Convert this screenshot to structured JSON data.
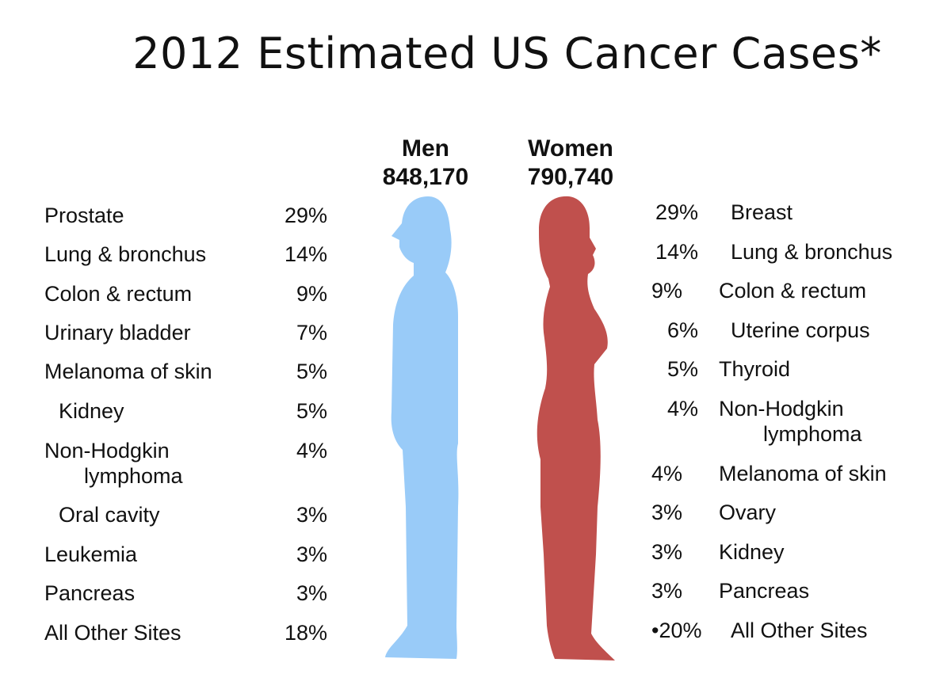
{
  "title": "2012 Estimated US Cancer Cases*",
  "colors": {
    "men": "#99cbf8",
    "women": "#c0504d"
  },
  "chart_data": {
    "type": "table",
    "title": "2012 Estimated US Cancer Cases*",
    "groups": [
      {
        "name": "Men",
        "total": "848,170",
        "total_value": 848170,
        "categories": [
          "Prostate",
          "Lung & bronchus",
          "Colon & rectum",
          "Urinary bladder",
          "Melanoma of skin",
          "Kidney",
          "Non-Hodgkin lymphoma",
          "Oral cavity",
          "Leukemia",
          "Pancreas",
          "All Other Sites"
        ],
        "values": [
          29,
          14,
          9,
          7,
          5,
          5,
          4,
          3,
          3,
          3,
          18
        ],
        "unit": "%"
      },
      {
        "name": "Women",
        "total": "790,740",
        "total_value": 790740,
        "categories": [
          "Breast",
          "Lung & bronchus",
          "Colon & rectum",
          "Uterine corpus",
          "Thyroid",
          "Non-Hodgkin lymphoma",
          "Melanoma of skin",
          "Ovary",
          "Kidney",
          "Pancreas",
          "All Other Sites"
        ],
        "values": [
          29,
          14,
          9,
          6,
          5,
          4,
          4,
          3,
          3,
          3,
          20
        ],
        "unit": "%"
      }
    ]
  },
  "men": {
    "header": "Men",
    "total": "848,170",
    "rows": [
      {
        "label": "Prostate",
        "pct": "29%"
      },
      {
        "label": "Lung & bronchus",
        "pct": "14%"
      },
      {
        "label": "Colon & rectum",
        "pct": "9%"
      },
      {
        "label": "Urinary bladder",
        "pct": "7%"
      },
      {
        "label": "Melanoma of skin",
        "pct": "5%"
      },
      {
        "label": "Kidney",
        "pct": "5%"
      },
      {
        "label": "Non-Hodgkin",
        "label2": "lymphoma",
        "pct": "4%"
      },
      {
        "label": "Oral cavity",
        "pct": "3%"
      },
      {
        "label": "Leukemia",
        "pct": "3%"
      },
      {
        "label": "Pancreas",
        "pct": "3%"
      },
      {
        "label": "All Other Sites",
        "pct": "18%"
      }
    ]
  },
  "women": {
    "header": "Women",
    "total": "790,740",
    "rows": [
      {
        "label": "Breast",
        "pct": "29%"
      },
      {
        "label": "Lung & bronchus",
        "pct": "14%"
      },
      {
        "label": "Colon & rectum",
        "pct": "9%"
      },
      {
        "label": "Uterine corpus",
        "pct": "6%"
      },
      {
        "label": "Thyroid",
        "pct": "5%"
      },
      {
        "label": "Non-Hodgkin",
        "label2": "lymphoma",
        "pct": "4%"
      },
      {
        "label": "Melanoma of skin",
        "pct": "4%"
      },
      {
        "label": "Ovary",
        "pct": "3%"
      },
      {
        "label": "Kidney",
        "pct": "3%"
      },
      {
        "label": "Pancreas",
        "pct": "3%"
      },
      {
        "label": "All Other Sites",
        "pct": "•20%"
      }
    ]
  }
}
